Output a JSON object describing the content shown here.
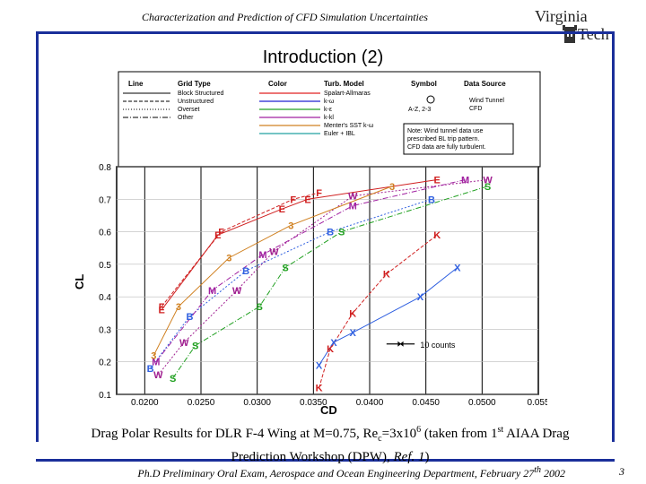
{
  "header": {
    "title": "Characterization and Prediction of CFD Simulation Uncertainties",
    "logo": {
      "line1": "Virginia",
      "line2": "Tech"
    }
  },
  "slide": {
    "title": "Introduction (2)"
  },
  "caption": {
    "part1": "Drag Polar Results for DLR F-4 Wing at M=0.75, Re",
    "sub": "c",
    "part2": "=3x10",
    "sup1": "6",
    "part3": " (taken from 1",
    "sup2": "st",
    "part4": "  AIAA Drag",
    "line2a": "Prediction Workshop (DPW), ",
    "line2b": "Ref. 1",
    "line2c": ")"
  },
  "footer": {
    "text": "Ph.D Preliminary Oral Exam, Aerospace and Ocean Engineering Department, February 27",
    "sup": "th",
    "year": " 2002",
    "page": "3"
  },
  "chart_data": {
    "type": "scatter",
    "xlabel": "CD",
    "ylabel": "CL",
    "xlim": [
      0.0175,
      0.055
    ],
    "ylim": [
      0.1,
      0.8
    ],
    "x_ticks": [
      "0.0200",
      "0.0250",
      "0.0300",
      "0.0350",
      "0.0400",
      "0.0450",
      "0.0500",
      "0.055"
    ],
    "x_tick_values": [
      0.02,
      0.025,
      0.03,
      0.035,
      0.04,
      0.045,
      0.05,
      0.055
    ],
    "y_ticks": [
      "0.1",
      "0.2",
      "0.3",
      "0.4",
      "0.5",
      "0.6",
      "0.7",
      "0.8"
    ],
    "y_tick_values": [
      0.1,
      0.2,
      0.3,
      0.4,
      0.5,
      0.6,
      0.7,
      0.8
    ],
    "annotation": "10 counts",
    "legend": {
      "headers": [
        "Line",
        "Grid Type",
        "Color",
        "Turb. Model",
        "Symbol",
        "Data Source"
      ],
      "grid_types": [
        "Block Structured",
        "Unstructured",
        "Overset",
        "Other"
      ],
      "turb_models": [
        "Spalart-Allmaras",
        "k-ω",
        "k-ε",
        "k-kl",
        "Menter's SST k-ω",
        "Euler + IBL"
      ],
      "turb_colors": [
        "#e02020",
        "#2020d0",
        "#20a020",
        "#a020a0",
        "#d08020",
        "#20a0a0"
      ],
      "symbol_label": "A-Z, 2-3",
      "data_sources": [
        "Wind Tunnel",
        "CFD"
      ],
      "note": "Note: Wind tunnel data use prescribed BL trip pattern. CFD data are fully turbulent."
    },
    "series": [
      {
        "marker": "E",
        "color": "#d02020",
        "x": [
          0.0215,
          0.0265,
          0.0322,
          0.0345,
          0.046
        ],
        "y": [
          0.36,
          0.59,
          0.67,
          0.7,
          0.76
        ]
      },
      {
        "marker": "F",
        "color": "#d02020",
        "x": [
          0.0215,
          0.0268,
          0.0332,
          0.0355
        ],
        "y": [
          0.37,
          0.6,
          0.7,
          0.72
        ]
      },
      {
        "marker": "W",
        "color": "#a02090",
        "x": [
          0.0212,
          0.0235,
          0.0282,
          0.0315,
          0.0385,
          0.0505
        ],
        "y": [
          0.16,
          0.26,
          0.42,
          0.54,
          0.71,
          0.76
        ]
      },
      {
        "marker": "S",
        "color": "#20a020",
        "x": [
          0.0225,
          0.0245,
          0.0302,
          0.0325,
          0.0375,
          0.0505
        ],
        "y": [
          0.15,
          0.25,
          0.37,
          0.49,
          0.6,
          0.74
        ]
      },
      {
        "marker": "X",
        "color": "#3060e0",
        "x": [
          0.0355,
          0.0368,
          0.0385,
          0.0445,
          0.0478
        ],
        "y": [
          0.19,
          0.26,
          0.29,
          0.4,
          0.49
        ]
      },
      {
        "marker": "K",
        "color": "#d02020",
        "x": [
          0.0355,
          0.0365,
          0.0385,
          0.0415,
          0.046
        ],
        "y": [
          0.12,
          0.24,
          0.35,
          0.47,
          0.59
        ]
      },
      {
        "marker": "B",
        "color": "#3060e0",
        "x": [
          0.0205,
          0.024,
          0.029,
          0.0365,
          0.0455
        ],
        "y": [
          0.18,
          0.34,
          0.48,
          0.6,
          0.7
        ]
      },
      {
        "marker": "M",
        "color": "#a020a0",
        "x": [
          0.021,
          0.026,
          0.0305,
          0.0385,
          0.0485
        ],
        "y": [
          0.2,
          0.42,
          0.53,
          0.68,
          0.76
        ]
      },
      {
        "marker": "3",
        "color": "#d08020",
        "x": [
          0.0208,
          0.023,
          0.0275,
          0.033,
          0.042
        ],
        "y": [
          0.22,
          0.37,
          0.52,
          0.62,
          0.74
        ]
      }
    ]
  }
}
